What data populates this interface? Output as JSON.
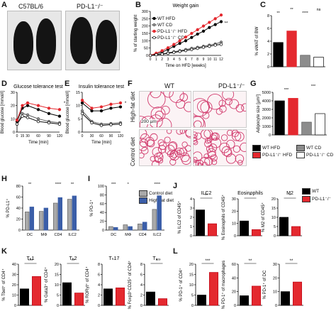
{
  "panel_letters": [
    "A",
    "B",
    "C",
    "D",
    "E",
    "F",
    "G",
    "H",
    "I",
    "J",
    "K",
    "L"
  ],
  "colors": {
    "wt_hfd": "#000000",
    "wt_cd": "#8c8c8c",
    "ko_hfd": "#e4292f",
    "ko_cd": "#ffffff",
    "control": "#a9a9a9",
    "hfd_blue": "#3b5ea8",
    "stain": "#d23c6e"
  },
  "panel_a": {
    "labels": [
      "C57BL/6",
      "PD-L1⁻/⁻"
    ]
  },
  "panel_f": {
    "col_headers": [
      "WT",
      "PD-L1⁻/⁻"
    ],
    "row_labels": [
      "High-fat diet",
      "Control diet"
    ],
    "scale_bar": "200 µm"
  },
  "legend_main": [
    {
      "label": "WT HFD",
      "color": "#000000"
    },
    {
      "label": "WT CD",
      "color": "#8c8c8c"
    },
    {
      "label": "PD-L1⁻/⁻ HFD",
      "color": "#e4292f"
    },
    {
      "label": "PD-L1⁻/⁻ CD",
      "color": "#ffffff"
    }
  ],
  "legend_hi": [
    {
      "label": "Control diet",
      "color": "#a9a9a9"
    },
    {
      "label": "High-fat diet",
      "color": "#3b5ea8"
    }
  ],
  "legend_jl": [
    {
      "label": "WT",
      "color": "#000000"
    },
    {
      "label": "PD-L1⁻/⁻",
      "color": "#e4292f"
    }
  ],
  "chart_data": [
    {
      "panel": "B",
      "type": "line",
      "title": "Weight gain",
      "xlabel": "Time on HFD [weeks]",
      "ylabel": "% of starting weight",
      "xlim": [
        0,
        12
      ],
      "ylim": [
        0,
        300
      ],
      "x": [
        0,
        1,
        2,
        3,
        4,
        5,
        6,
        7,
        8,
        9,
        10,
        11,
        12
      ],
      "yticks": [
        0,
        50,
        100,
        150,
        200,
        250,
        300
      ],
      "significance": "**",
      "series": [
        {
          "name": "WT HFD",
          "values": [
            0,
            10,
            22,
            40,
            62,
            82,
            100,
            122,
            145,
            165,
            190,
            210,
            230
          ]
        },
        {
          "name": "WT CD",
          "values": [
            0,
            5,
            10,
            18,
            25,
            32,
            40,
            48,
            55,
            62,
            70,
            78,
            90
          ]
        },
        {
          "name": "PD-L1⁻/⁻ HFD",
          "values": [
            0,
            15,
            32,
            52,
            75,
            100,
            125,
            150,
            175,
            200,
            225,
            250,
            275
          ]
        },
        {
          "name": "PD-L1⁻/⁻ CD",
          "values": [
            0,
            4,
            8,
            14,
            20,
            27,
            33,
            40,
            48,
            55,
            62,
            70,
            75
          ]
        }
      ]
    },
    {
      "panel": "C",
      "type": "bar",
      "ylabel": "% eWAT of BW",
      "ylim": [
        0,
        8
      ],
      "yticks": [
        0,
        2,
        4,
        6,
        8
      ],
      "significance": [
        "**",
        "**",
        "****",
        "ns"
      ],
      "series": [
        {
          "name": "WT HFD",
          "values": [
            3.8
          ]
        },
        {
          "name": "PD-L1⁻/⁻ HFD",
          "values": [
            5.6
          ]
        },
        {
          "name": "WT CD",
          "values": [
            1.8
          ]
        },
        {
          "name": "PD-L1⁻/⁻ CD",
          "values": [
            1.5
          ]
        }
      ]
    },
    {
      "panel": "D",
      "type": "line",
      "title": "Glucose tolerance test",
      "xlabel": "Time [min]",
      "ylabel": "Blood glucose [mmol/l]",
      "xlim": [
        0,
        120
      ],
      "ylim": [
        0,
        30
      ],
      "x": [
        0,
        15,
        30,
        60,
        90,
        120
      ],
      "yticks": [
        0,
        10,
        20,
        30
      ],
      "significance": "*",
      "series": [
        {
          "name": "WT HFD",
          "values": [
            8,
            18,
            20,
            17,
            14,
            12
          ]
        },
        {
          "name": "WT CD",
          "values": [
            6,
            14,
            13,
            10,
            8,
            7
          ]
        },
        {
          "name": "PD-L1⁻/⁻ HFD",
          "values": [
            9,
            20,
            22,
            20,
            18,
            17
          ]
        },
        {
          "name": "PD-L1⁻/⁻ CD",
          "values": [
            6,
            12,
            11,
            8,
            7,
            6
          ]
        }
      ]
    },
    {
      "panel": "E",
      "type": "line",
      "title": "Insulin tolerance test",
      "xlabel": "Time [min]",
      "ylabel": "Blood glucose [mmol/l]",
      "xlim": [
        0,
        120
      ],
      "ylim": [
        0,
        15
      ],
      "x": [
        0,
        30,
        60,
        90,
        120
      ],
      "yticks": [
        0,
        5,
        10,
        15
      ],
      "significance": "*",
      "series": [
        {
          "name": "WT HFD",
          "values": [
            11,
            8,
            8,
            9,
            9.5
          ]
        },
        {
          "name": "WT CD",
          "values": [
            8,
            4,
            3,
            3.2,
            3.5
          ]
        },
        {
          "name": "PD-L1⁻/⁻ HFD",
          "values": [
            12,
            9,
            9.5,
            10.5,
            11
          ]
        },
        {
          "name": "PD-L1⁻/⁻ CD",
          "values": [
            7,
            3.5,
            2.5,
            2.8,
            3
          ]
        }
      ]
    },
    {
      "panel": "G",
      "type": "bar",
      "ylabel": "Adipocyte size [µm²]",
      "ylim": [
        0,
        5000
      ],
      "yticks": [
        0,
        1000,
        2000,
        3000,
        4000,
        5000
      ],
      "significance": [
        "***",
        "***"
      ],
      "series": [
        {
          "name": "WT HFD",
          "values": [
            4000
          ]
        },
        {
          "name": "PD-L1⁻/⁻ HFD",
          "values": [
            4300
          ]
        },
        {
          "name": "WT CD",
          "values": [
            1500
          ]
        },
        {
          "name": "PD-L1⁻/⁻ CD",
          "values": [
            2500
          ]
        }
      ]
    },
    {
      "panel": "H",
      "type": "bar",
      "ylabel": "% PD-L1⁺",
      "ylim": [
        0,
        80
      ],
      "yticks": [
        0,
        20,
        40,
        60,
        80
      ],
      "categories": [
        "DC",
        "MΦ",
        "CD4",
        "ILC2"
      ],
      "significance": [
        "**",
        "",
        "****",
        "**"
      ],
      "series": [
        {
          "name": "Control diet",
          "values": [
            33,
            34,
            49,
            56
          ]
        },
        {
          "name": "High-fat diet",
          "values": [
            42,
            40,
            59,
            62
          ]
        }
      ]
    },
    {
      "panel": "I",
      "type": "bar",
      "ylabel": "% PD-1⁺",
      "ylim": [
        0,
        100
      ],
      "yticks": [
        0,
        20,
        40,
        60,
        80,
        100
      ],
      "categories": [
        "DC",
        "MΦ",
        "CD4",
        "ILC2"
      ],
      "significance": [
        "***",
        "*",
        "",
        "****"
      ],
      "series": [
        {
          "name": "Control diet",
          "values": [
            8,
            12,
            14,
            47
          ]
        },
        {
          "name": "High-fat diet",
          "values": [
            6,
            8,
            18,
            78
          ]
        }
      ]
    },
    {
      "panel": "J1",
      "type": "bar",
      "title": "ILC2",
      "ylabel": "% ILC2 of CD45⁺",
      "ylim": [
        0,
        4
      ],
      "yticks": [
        0,
        1,
        2,
        3,
        4
      ],
      "significance": "**",
      "series": [
        {
          "name": "WT",
          "values": [
            2.8
          ]
        },
        {
          "name": "PD-L1⁻/⁻",
          "values": [
            1.3
          ]
        }
      ]
    },
    {
      "panel": "J2",
      "type": "bar",
      "title": "Eosinophils",
      "ylabel": "% Eosinophils of CD45⁺",
      "ylim": [
        0,
        30
      ],
      "yticks": [
        0,
        10,
        20,
        30
      ],
      "significance": "*",
      "series": [
        {
          "name": "WT",
          "values": [
            12
          ]
        },
        {
          "name": "PD-L1⁻/⁻",
          "values": [
            5
          ]
        }
      ]
    },
    {
      "panel": "J3",
      "type": "bar",
      "title": "M2",
      "ylabel": "% M2 of CD45⁺",
      "ylim": [
        0,
        20
      ],
      "yticks": [
        0,
        5,
        10,
        15,
        20
      ],
      "significance": "*",
      "series": [
        {
          "name": "WT",
          "values": [
            10
          ]
        },
        {
          "name": "PD-L1⁻/⁻",
          "values": [
            5
          ]
        }
      ]
    },
    {
      "panel": "K1",
      "type": "bar",
      "title": "Tₕ1",
      "ylabel": "% Tbet⁺ of CD4⁺",
      "ylim": [
        0,
        40
      ],
      "yticks": [
        0,
        10,
        20,
        30,
        40
      ],
      "significance": "***",
      "series": [
        {
          "name": "WT",
          "values": [
            16
          ]
        },
        {
          "name": "PD-L1⁻/⁻",
          "values": [
            28
          ]
        }
      ]
    },
    {
      "panel": "K2",
      "type": "bar",
      "title": "Tₕ2",
      "ylabel": "% Gata3⁺ of CD4⁺",
      "ylim": [
        0,
        20
      ],
      "yticks": [
        0,
        5,
        10,
        15,
        20
      ],
      "significance": "**",
      "series": [
        {
          "name": "WT",
          "values": [
            11
          ]
        },
        {
          "name": "PD-L1⁻/⁻",
          "values": [
            6
          ]
        }
      ]
    },
    {
      "panel": "K3",
      "type": "bar",
      "title": "Tₕ17",
      "ylabel": "% RORγt⁺ of CD4⁺",
      "ylim": [
        0,
        8
      ],
      "yticks": [
        0,
        2,
        4,
        6,
        8
      ],
      "significance": "",
      "series": [
        {
          "name": "WT",
          "values": [
            3.2
          ]
        },
        {
          "name": "PD-L1⁻/⁻",
          "values": [
            3.4
          ]
        }
      ]
    },
    {
      "panel": "K4",
      "type": "bar",
      "title": "Tᵣₑ₉",
      "ylabel": "% Foxp3⁺CD25⁺ of CD4⁺",
      "ylim": [
        0,
        8
      ],
      "yticks": [
        0,
        2,
        4,
        6,
        8
      ],
      "significance": "*",
      "series": [
        {
          "name": "WT",
          "values": [
            2.6
          ]
        },
        {
          "name": "PD-L1⁻/⁻",
          "values": [
            1.3
          ]
        }
      ]
    },
    {
      "panel": "L1",
      "type": "bar",
      "ylabel": "% PD-1⁺ of CD4⁺",
      "ylim": [
        0,
        20
      ],
      "yticks": [
        0,
        5,
        10,
        15,
        20
      ],
      "significance": "***",
      "series": [
        {
          "name": "WT",
          "values": [
            5
          ]
        },
        {
          "name": "PD-L1⁻/⁻",
          "values": [
            16
          ]
        }
      ]
    },
    {
      "panel": "L2",
      "type": "bar",
      "ylabel": "% PD-1⁺ of macrophages",
      "ylim": [
        0,
        60
      ],
      "yticks": [
        0,
        20,
        40,
        60
      ],
      "significance": "**",
      "series": [
        {
          "name": "WT",
          "values": [
            14
          ]
        },
        {
          "name": "PD-L1⁻/⁻",
          "values": [
            28
          ]
        }
      ]
    },
    {
      "panel": "L3",
      "type": "bar",
      "ylabel": "% PD-1⁺ of DC",
      "ylim": [
        0,
        30
      ],
      "yticks": [
        0,
        10,
        20,
        30
      ],
      "significance": "**",
      "series": [
        {
          "name": "WT",
          "values": [
            10
          ]
        },
        {
          "name": "PD-L1⁻/⁻",
          "values": [
            17
          ]
        }
      ]
    }
  ]
}
